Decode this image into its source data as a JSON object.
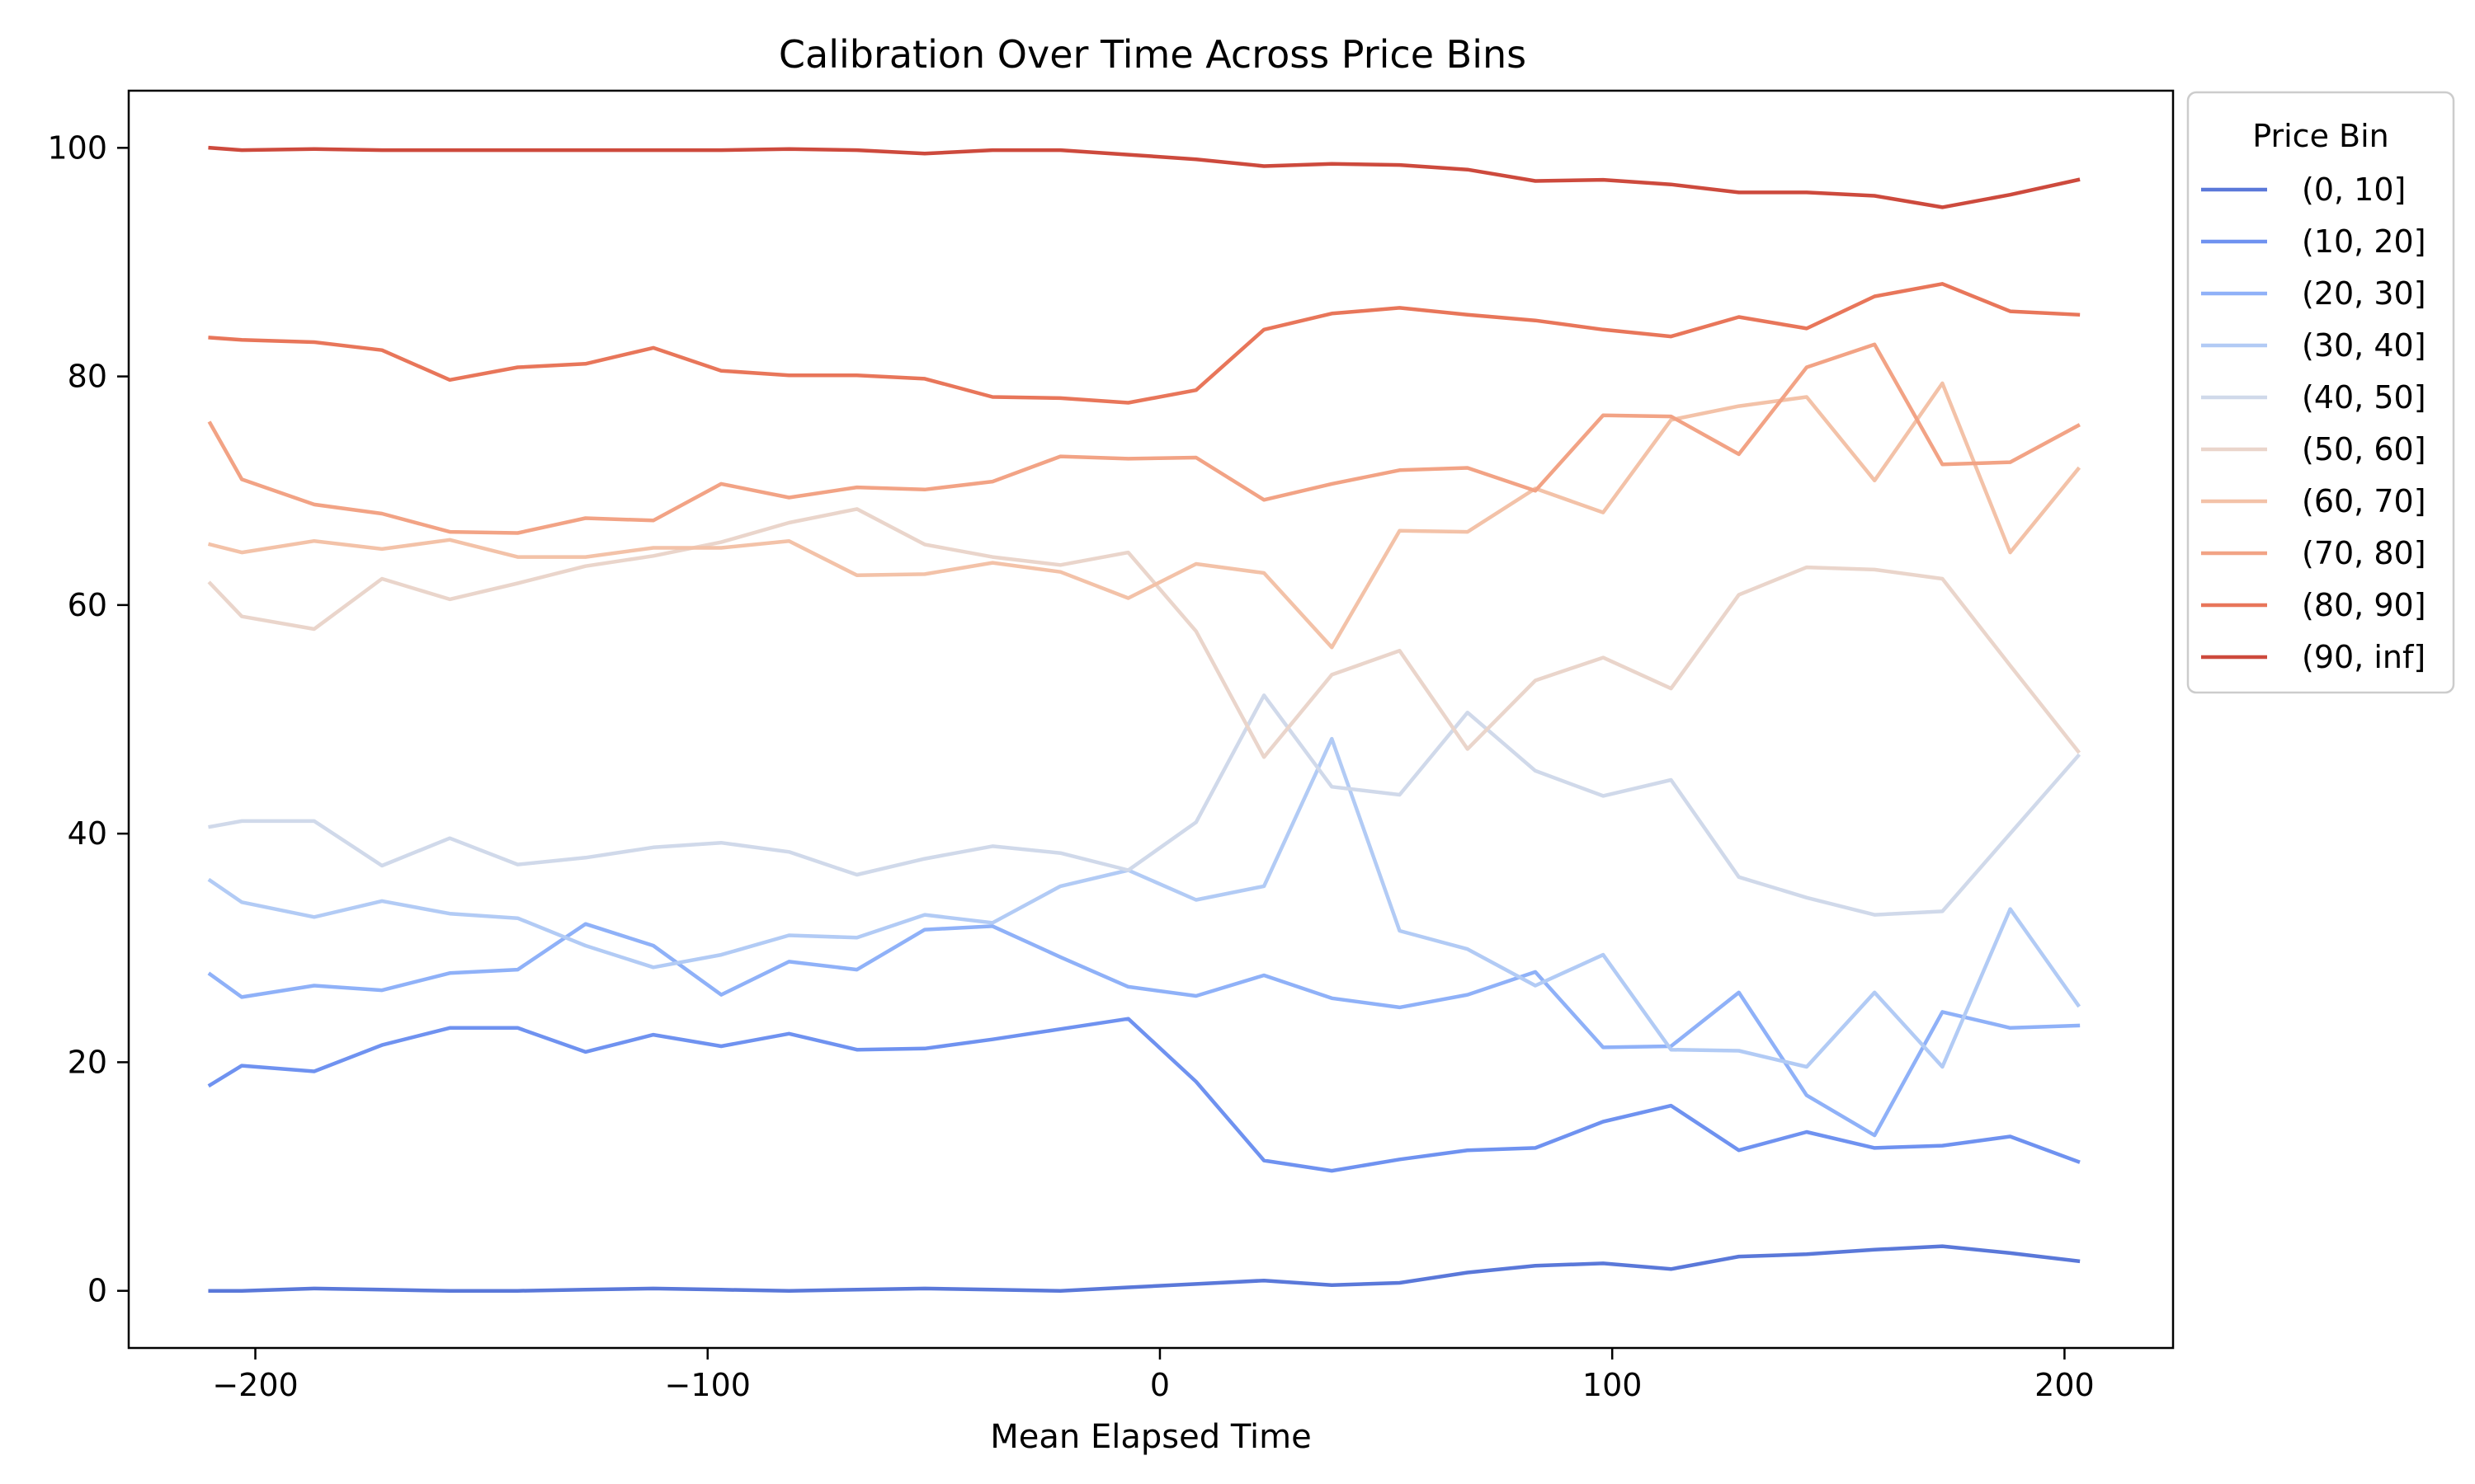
{
  "chart_data": {
    "type": "line",
    "title": "Calibration Over Time Across Price Bins",
    "xlabel": "Mean Elapsed Time",
    "ylabel": "",
    "xlim": [
      -228,
      224
    ],
    "ylim": [
      -5,
      105
    ],
    "xticks": [
      -200,
      -100,
      0,
      100,
      200
    ],
    "xtick_labels": [
      "−200",
      "−100",
      "0",
      "100",
      "200"
    ],
    "yticks": [
      0,
      20,
      40,
      60,
      80,
      100
    ],
    "ytick_labels": [
      "0",
      "20",
      "40",
      "60",
      "80",
      "100"
    ],
    "grid": false,
    "legend": {
      "title": "Price Bin",
      "placement": "outside-right-top"
    },
    "x": [
      -210,
      -203,
      -187,
      -172,
      -157,
      -142,
      -127,
      -112,
      -97,
      -82,
      -67,
      -52,
      -37,
      -22,
      -7,
      8,
      23,
      38,
      53,
      68,
      83,
      98,
      113,
      128,
      143,
      158,
      173,
      188,
      203
    ],
    "series": [
      {
        "name": "(0, 10]",
        "color": "#5a78d9",
        "values": [
          0.0,
          0.0,
          0.2,
          0.1,
          0.0,
          0.0,
          0.1,
          0.2,
          0.1,
          0.0,
          0.1,
          0.2,
          0.1,
          0.0,
          0.3,
          0.6,
          0.9,
          0.5,
          0.7,
          1.6,
          2.2,
          2.4,
          1.9,
          3.0,
          3.2,
          3.6,
          3.9,
          3.3,
          2.6
        ]
      },
      {
        "name": "(10, 20]",
        "color": "#6f92f0",
        "values": [
          18.0,
          19.7,
          19.2,
          21.5,
          23.0,
          23.0,
          20.9,
          22.4,
          21.4,
          22.5,
          21.1,
          21.2,
          22.0,
          22.9,
          23.8,
          18.3,
          11.4,
          10.5,
          11.5,
          12.3,
          12.5,
          14.8,
          16.2,
          12.3,
          13.9,
          12.5,
          12.7,
          13.5,
          11.3
        ]
      },
      {
        "name": "(20, 30]",
        "color": "#8fb1f8",
        "values": [
          27.7,
          25.7,
          26.7,
          26.3,
          27.8,
          28.1,
          32.1,
          30.2,
          25.9,
          28.8,
          28.1,
          31.6,
          31.9,
          29.2,
          26.6,
          25.8,
          27.6,
          25.6,
          24.8,
          25.9,
          27.9,
          21.3,
          21.4,
          26.1,
          17.1,
          13.6,
          24.4,
          23.0,
          23.2
        ]
      },
      {
        "name": "(30, 40]",
        "color": "#b2cbf5",
        "values": [
          35.9,
          34.0,
          32.7,
          34.1,
          33.0,
          32.6,
          30.2,
          28.3,
          29.4,
          31.1,
          30.9,
          32.9,
          32.2,
          35.4,
          36.8,
          34.2,
          35.4,
          48.3,
          31.5,
          29.9,
          26.7,
          29.4,
          21.1,
          21.0,
          19.6,
          26.1,
          19.6,
          33.4,
          25.0
        ]
      },
      {
        "name": "(40, 50]",
        "color": "#d0d9ea",
        "values": [
          40.6,
          41.1,
          41.1,
          37.2,
          39.6,
          37.3,
          37.9,
          38.8,
          39.2,
          38.4,
          36.4,
          37.8,
          38.9,
          38.3,
          36.8,
          41.0,
          52.1,
          44.1,
          43.4,
          50.6,
          45.5,
          43.3,
          44.7,
          36.2,
          34.4,
          32.9,
          33.2,
          40.0,
          46.8
        ]
      },
      {
        "name": "(50, 60]",
        "color": "#ead5cb",
        "values": [
          61.9,
          59.0,
          57.9,
          62.3,
          60.5,
          61.9,
          63.4,
          64.3,
          65.5,
          67.2,
          68.4,
          65.3,
          64.2,
          63.5,
          64.6,
          57.7,
          46.7,
          53.9,
          56.0,
          47.4,
          53.4,
          55.4,
          52.7,
          60.9,
          63.3,
          63.1,
          62.3,
          54.7,
          47.2
        ]
      },
      {
        "name": "(60, 70]",
        "color": "#f3c2a8",
        "values": [
          65.3,
          64.6,
          65.6,
          64.9,
          65.7,
          64.2,
          64.2,
          65.0,
          65.0,
          65.6,
          62.6,
          62.7,
          63.7,
          62.9,
          60.6,
          63.6,
          62.8,
          56.3,
          66.5,
          66.4,
          70.2,
          68.1,
          76.2,
          77.4,
          78.2,
          70.9,
          79.4,
          64.6,
          71.9
        ]
      },
      {
        "name": "(70, 80]",
        "color": "#f2a385",
        "values": [
          75.9,
          71.0,
          68.8,
          68.0,
          66.4,
          66.3,
          67.6,
          67.4,
          70.6,
          69.4,
          70.3,
          70.1,
          70.8,
          73.0,
          72.8,
          72.9,
          69.2,
          70.6,
          71.8,
          72.0,
          70.0,
          76.6,
          76.5,
          73.2,
          80.8,
          82.8,
          72.3,
          72.5,
          75.7
        ]
      },
      {
        "name": "(80, 90]",
        "color": "#e8765a",
        "values": [
          83.4,
          83.2,
          83.0,
          82.3,
          79.7,
          80.8,
          81.1,
          82.5,
          80.5,
          80.1,
          80.1,
          79.8,
          78.2,
          78.1,
          77.7,
          78.8,
          84.1,
          85.5,
          86.0,
          85.4,
          84.9,
          84.1,
          83.5,
          85.2,
          84.2,
          87.0,
          88.1,
          85.7,
          85.4
        ]
      },
      {
        "name": "(90, inf]",
        "color": "#cd4a3d",
        "values": [
          100.0,
          99.8,
          99.9,
          99.8,
          99.8,
          99.8,
          99.8,
          99.8,
          99.8,
          99.9,
          99.8,
          99.5,
          99.8,
          99.8,
          99.4,
          99.0,
          98.4,
          98.6,
          98.5,
          98.1,
          97.1,
          97.2,
          96.8,
          96.1,
          96.1,
          95.8,
          94.8,
          95.9,
          97.2
        ]
      }
    ]
  }
}
